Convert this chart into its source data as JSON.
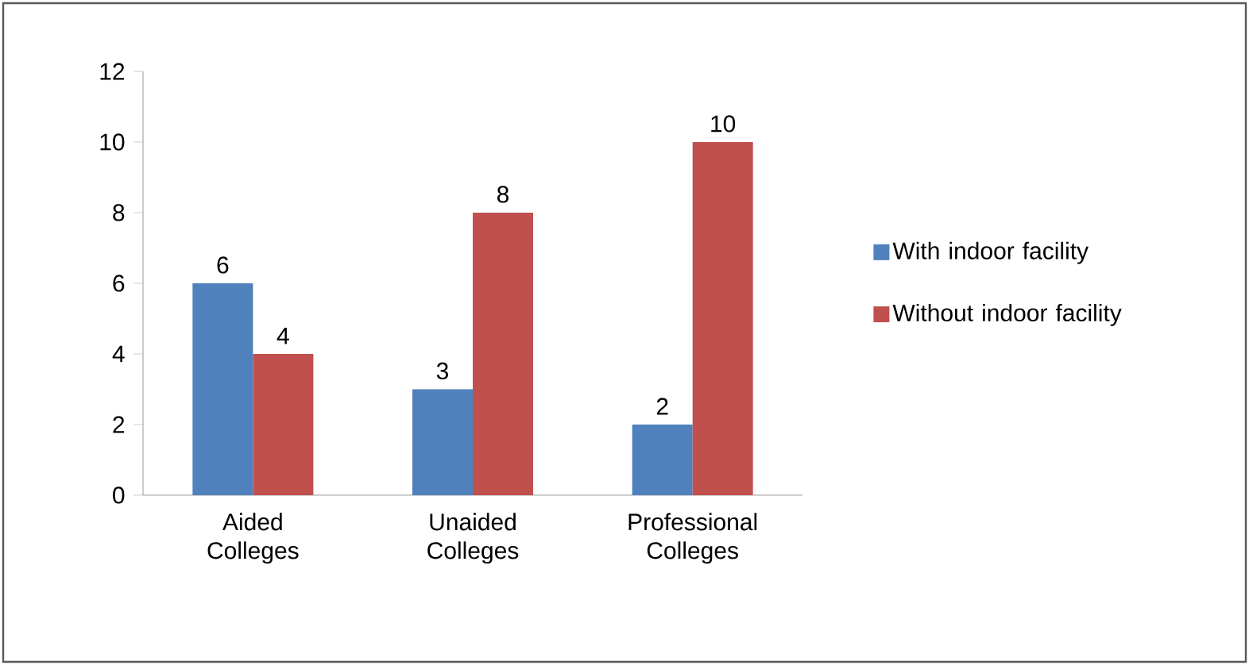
{
  "chart_data": {
    "type": "bar",
    "categories": [
      "Aided Colleges",
      "Unaided Colleges",
      "Professional Colleges"
    ],
    "series": [
      {
        "name": "With indoor facility",
        "color": "#4f81bd",
        "values": [
          6,
          3,
          2
        ]
      },
      {
        "name": "Without indoor facility",
        "color": "#c0504d",
        "values": [
          4,
          8,
          10
        ]
      }
    ],
    "ylim": [
      0,
      12
    ],
    "yticks": [
      0,
      2,
      4,
      6,
      8,
      10,
      12
    ],
    "data_labels": true,
    "legend": "right",
    "grid": false
  }
}
